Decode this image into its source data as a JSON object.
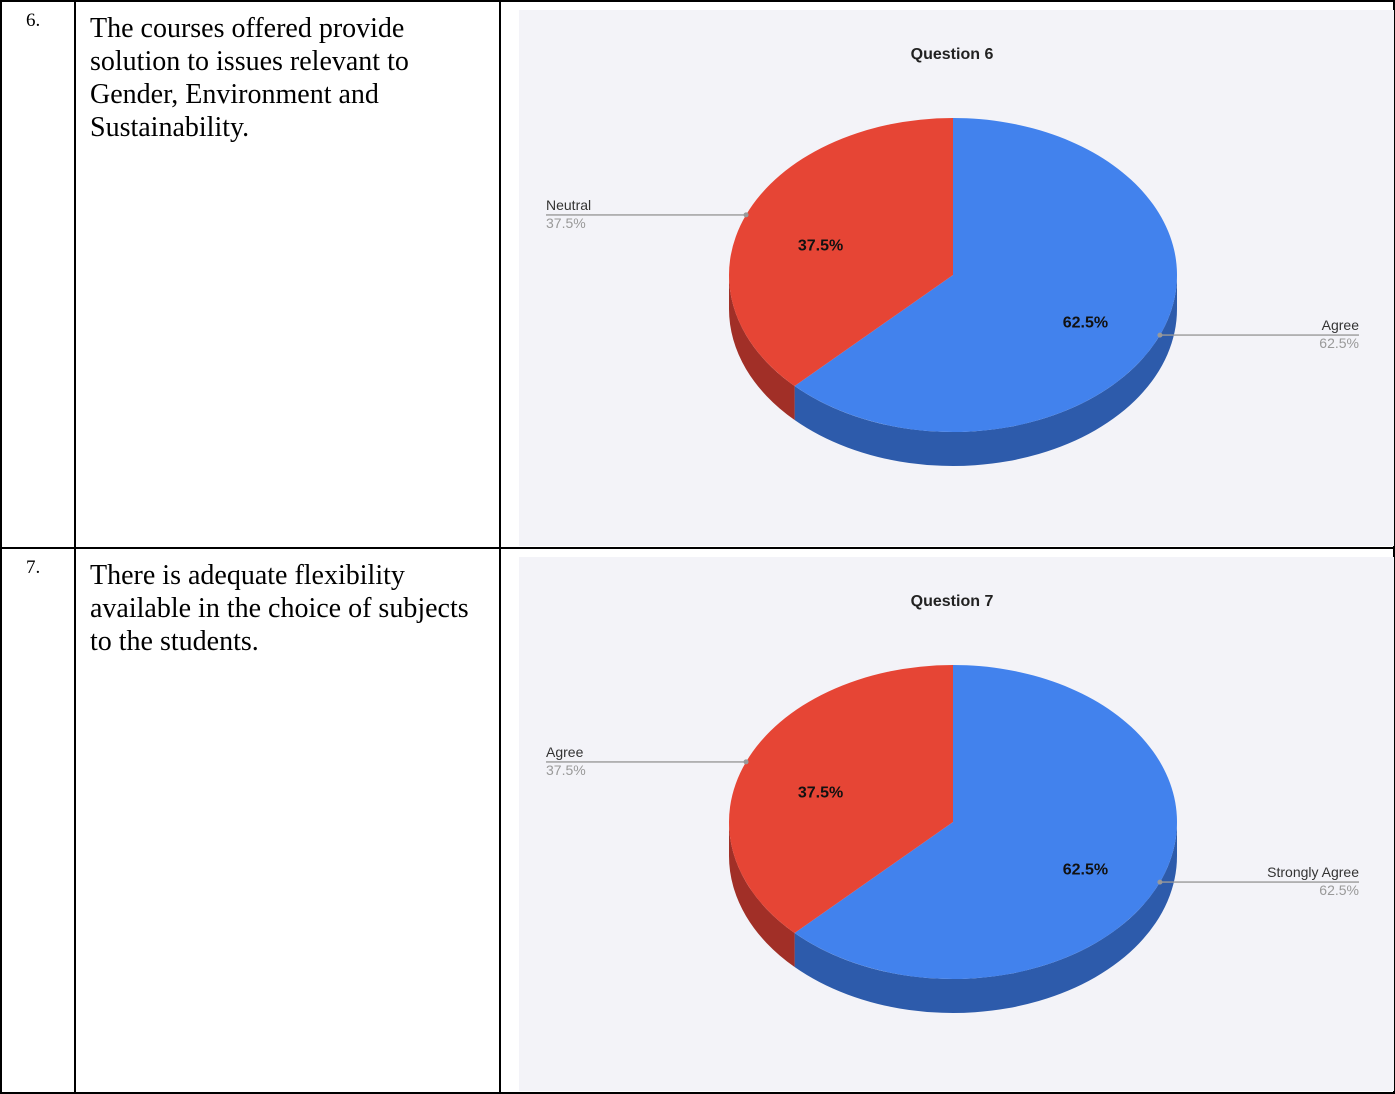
{
  "rows": [
    {
      "number": "6.",
      "text": "The courses offered provide solution to issues relevant to Gender, Environment and Sustainability."
    },
    {
      "number": "7.",
      "text": "There is adequate flexibility available in the choice of subjects to the students."
    }
  ],
  "chart_data": [
    {
      "type": "pie",
      "title": "Question 6",
      "three_d": true,
      "legend": "labeled slices",
      "slices": [
        {
          "label": "Agree",
          "value": 62.5,
          "percent_label": "62.5%",
          "color": "#4282ed",
          "side_color": "#2d5bab"
        },
        {
          "label": "Neutral",
          "value": 37.5,
          "percent_label": "37.5%",
          "color": "#e64535",
          "side_color": "#a12f27"
        }
      ]
    },
    {
      "type": "pie",
      "title": "Question 7",
      "three_d": true,
      "legend": "labeled slices",
      "slices": [
        {
          "label": "Strongly Agree",
          "value": 62.5,
          "percent_label": "62.5%",
          "color": "#4282ed",
          "side_color": "#2d5bab"
        },
        {
          "label": "Agree",
          "value": 37.5,
          "percent_label": "37.5%",
          "color": "#e64535",
          "side_color": "#a12f27"
        }
      ]
    }
  ]
}
